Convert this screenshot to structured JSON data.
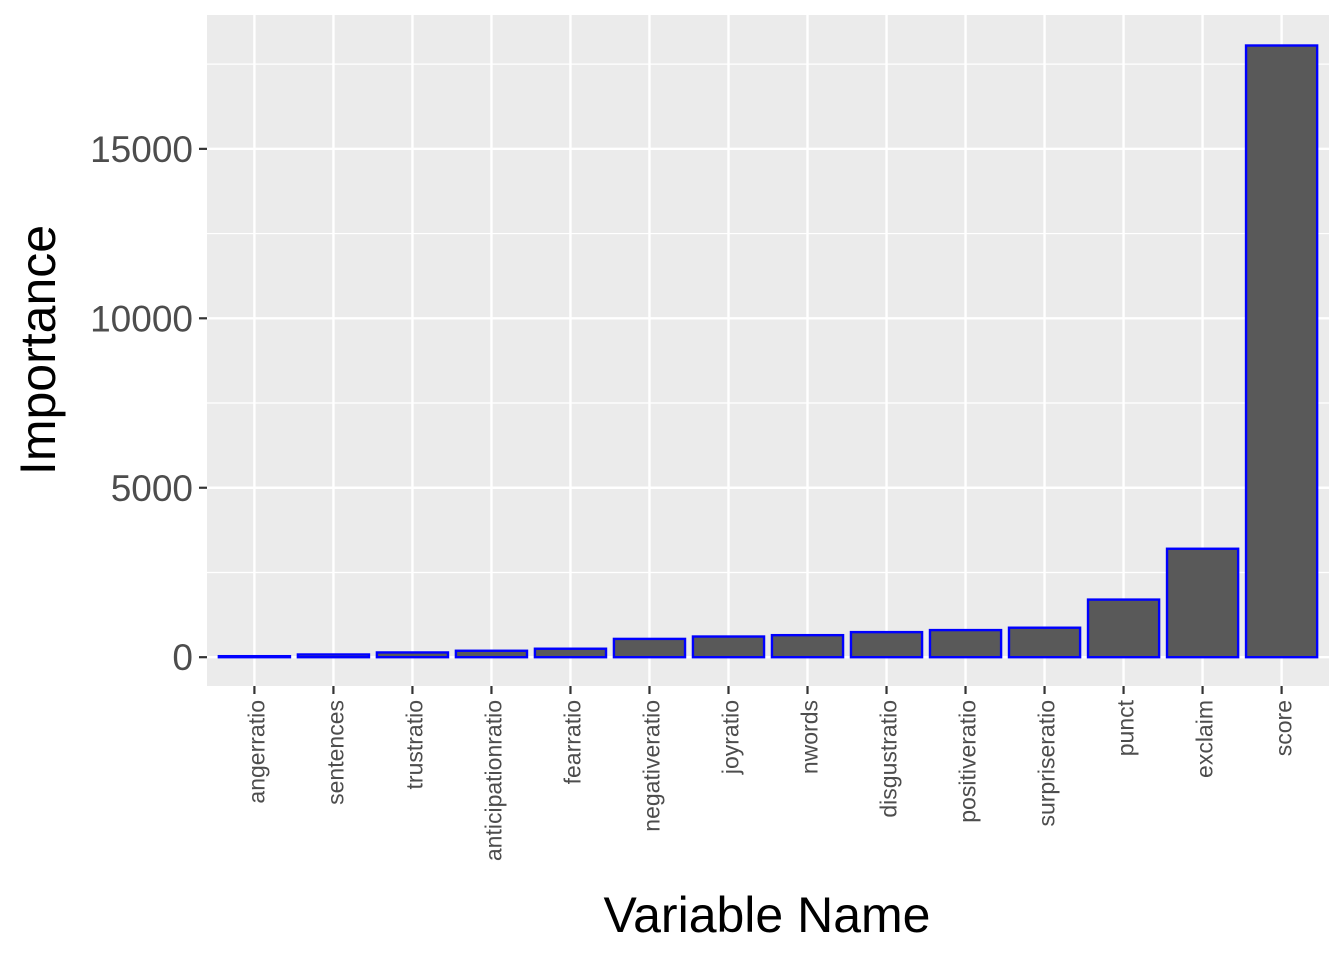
{
  "chart_data": {
    "type": "bar",
    "title": "",
    "xlabel": "Variable Name",
    "ylabel": "Importance",
    "categories": [
      "angerratio",
      "sentences",
      "trustratio",
      "anticipationratio",
      "fearratio",
      "negativeratio",
      "joyratio",
      "nwords",
      "disgustratio",
      "positiveratio",
      "surpriseratio",
      "punct",
      "exclaim",
      "score"
    ],
    "values": [
      30,
      80,
      140,
      190,
      250,
      540,
      610,
      650,
      740,
      800,
      870,
      1700,
      3200,
      18050
    ],
    "ylim": [
      -850,
      18950
    ],
    "yticks": [
      0,
      5000,
      10000,
      15000
    ],
    "ytick_labels": [
      "0",
      "5000",
      "10000",
      "15000"
    ],
    "grid": true,
    "colors": {
      "panel_background": "#ebebeb",
      "grid_line": "#ffffff",
      "bar_fill": "#595959",
      "bar_outline": "#0000ff",
      "tick_text": "#4d4d4d",
      "axis_title_text": "#000000"
    }
  }
}
